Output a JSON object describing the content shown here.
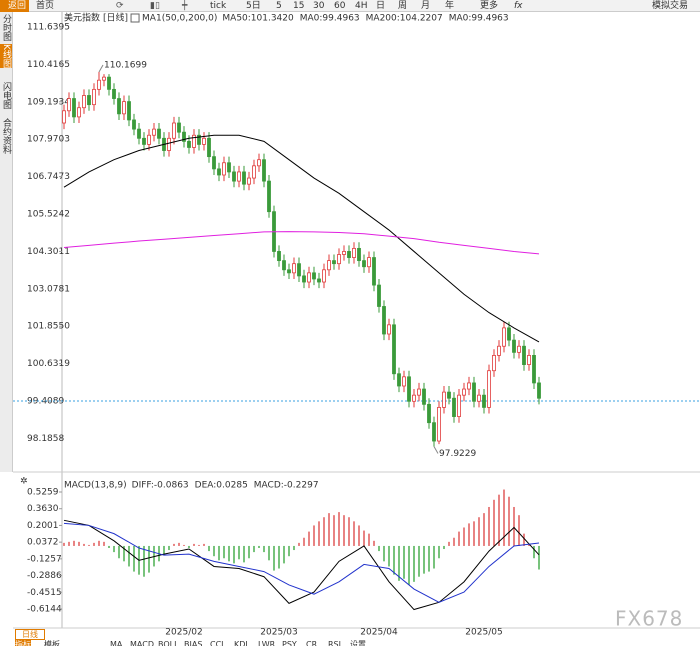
{
  "toolbar": {
    "back": "返回",
    "home": "首页",
    "tick": "tick",
    "periods": [
      "5日",
      "5",
      "15",
      "30",
      "60",
      "4H",
      "日",
      "周",
      "月",
      "年"
    ],
    "more": "更多",
    "fx": "fx",
    "sim": "模拟交易"
  },
  "sidebar": [
    "分时图",
    "K线图",
    "闪电图",
    "合约资料"
  ],
  "chart_data": [
    {
      "type": "candlestick",
      "title": "美元指数",
      "period": "[日线]",
      "params": "MA1(50,0,200,0)",
      "legend": [
        {
          "text": "MA50:101.3420",
          "color": "#000000"
        },
        {
          "text": "MA0:99.4963",
          "color": "#2233cc"
        },
        {
          "text": "MA200:104.2207",
          "color": "#e020e0"
        },
        {
          "text": "MA0:99.4963",
          "color": "#e08a00"
        }
      ],
      "ylim": [
        97.3,
        111.6395
      ],
      "yticks": [
        111.6395,
        110.4165,
        109.1934,
        107.9703,
        106.7473,
        105.5242,
        104.3011,
        103.0781,
        {
          "value": 101.855,
          "label": "101.8550"
        },
        100.6319,
        99.4089,
        98.1858
      ],
      "price_line": 99.4089,
      "xticks": [
        {
          "value": 24,
          "label": "2025/02"
        },
        {
          "value": 43,
          "label": "2025/03"
        },
        {
          "value": 63,
          "label": "2025/04"
        },
        {
          "value": 84,
          "label": "2025/05"
        }
      ],
      "up_color": "#e03a3a",
      "down_color": "#3a9a3a",
      "open": [
        108.5,
        108.9,
        109.3,
        108.7,
        109.0,
        109.4,
        109.1,
        109.6,
        109.9,
        110.0,
        109.6,
        109.3,
        108.8,
        109.2,
        108.6,
        108.3,
        108.0,
        107.8,
        108.1,
        108.3,
        108.0,
        107.6,
        108.0,
        108.5,
        108.2,
        107.9,
        107.7,
        108.1,
        107.8,
        108.0,
        107.4,
        107.0,
        106.8,
        107.2,
        106.9,
        106.6,
        106.9,
        106.5,
        106.7,
        107.1,
        107.3,
        106.6,
        105.6,
        104.3,
        104.0,
        103.7,
        103.6,
        103.9,
        103.5,
        103.3,
        103.6,
        103.4,
        103.3,
        103.7,
        104.0,
        103.9,
        104.2,
        104.3,
        104.1,
        104.4,
        104.0,
        103.8,
        104.1,
        103.2,
        102.5,
        101.6,
        101.9,
        100.3,
        99.9,
        100.2,
        99.4,
        99.6,
        99.8,
        99.3,
        98.7,
        98.1,
        99.2,
        99.7,
        99.5,
        98.9,
        99.6,
        99.8,
        100.0,
        99.4,
        99.6,
        99.2,
        100.4,
        100.9,
        101.2,
        101.8,
        101.4,
        101.0,
        101.2,
        100.6,
        100.9,
        100.0
      ],
      "high": [
        109.1,
        109.5,
        109.5,
        109.2,
        109.6,
        109.6,
        109.8,
        110.1699,
        110.1,
        110.1,
        109.8,
        109.5,
        109.4,
        109.4,
        108.8,
        108.5,
        108.2,
        108.3,
        108.5,
        108.5,
        108.2,
        108.2,
        108.7,
        108.7,
        108.4,
        108.1,
        108.3,
        108.3,
        108.2,
        108.2,
        107.6,
        107.2,
        107.4,
        107.4,
        107.1,
        107.1,
        107.1,
        106.9,
        107.3,
        107.5,
        107.5,
        106.8,
        105.8,
        104.5,
        104.2,
        103.9,
        104.1,
        104.1,
        103.7,
        103.8,
        103.8,
        103.6,
        103.9,
        104.2,
        104.2,
        104.4,
        104.5,
        104.5,
        104.6,
        104.6,
        104.2,
        104.3,
        104.3,
        103.4,
        102.7,
        102.1,
        102.1,
        100.5,
        100.4,
        100.4,
        99.8,
        100.0,
        100.0,
        99.5,
        98.9,
        99.4,
        99.9,
        99.9,
        99.7,
        99.8,
        100.0,
        100.2,
        100.2,
        99.8,
        99.8,
        100.6,
        101.1,
        101.4,
        102.0,
        102.0,
        101.6,
        101.4,
        101.4,
        101.1,
        101.1,
        100.2
      ],
      "low": [
        108.3,
        108.7,
        108.5,
        108.5,
        108.8,
        108.9,
        108.9,
        109.4,
        109.7,
        109.4,
        109.1,
        108.6,
        108.6,
        108.4,
        108.1,
        107.8,
        107.6,
        107.6,
        107.9,
        107.8,
        107.4,
        107.4,
        107.8,
        108.0,
        107.7,
        107.5,
        107.5,
        107.6,
        107.6,
        107.2,
        106.8,
        106.6,
        106.6,
        106.7,
        106.4,
        106.4,
        106.3,
        106.3,
        106.5,
        106.9,
        106.4,
        105.4,
        104.1,
        103.8,
        103.5,
        103.4,
        103.4,
        103.3,
        103.1,
        103.1,
        103.2,
        103.1,
        103.1,
        103.5,
        103.7,
        103.7,
        104.0,
        103.9,
        103.9,
        103.8,
        103.6,
        103.6,
        103.0,
        102.3,
        101.4,
        101.4,
        100.1,
        99.7,
        99.7,
        99.2,
        99.2,
        99.4,
        99.1,
        98.5,
        97.9229,
        98.0,
        99.0,
        99.3,
        98.7,
        98.7,
        99.4,
        99.6,
        99.2,
        99.2,
        99.0,
        99.0,
        100.2,
        100.7,
        101.0,
        101.2,
        100.8,
        100.8,
        100.4,
        100.4,
        99.8,
        99.3
      ],
      "close": [
        108.9,
        109.3,
        108.7,
        109.0,
        109.4,
        109.1,
        109.6,
        109.9,
        110.0,
        109.6,
        109.3,
        108.8,
        109.2,
        108.6,
        108.3,
        108.0,
        107.8,
        108.1,
        108.3,
        108.0,
        107.6,
        108.0,
        108.5,
        108.2,
        107.9,
        107.7,
        108.1,
        107.8,
        108.0,
        107.4,
        107.0,
        106.8,
        107.2,
        106.9,
        106.6,
        106.9,
        106.5,
        106.7,
        107.1,
        107.3,
        106.6,
        105.6,
        104.3,
        104.0,
        103.7,
        103.6,
        103.9,
        103.5,
        103.3,
        103.6,
        103.4,
        103.3,
        103.7,
        104.0,
        103.9,
        104.2,
        104.3,
        104.1,
        104.4,
        104.0,
        103.8,
        104.1,
        103.2,
        102.5,
        101.6,
        101.9,
        100.3,
        99.9,
        100.2,
        99.4,
        99.6,
        99.8,
        99.3,
        98.7,
        98.1,
        99.2,
        99.7,
        99.5,
        98.9,
        99.6,
        99.8,
        100.0,
        99.4,
        99.6,
        99.2,
        100.4,
        100.9,
        101.2,
        101.8,
        101.4,
        101.0,
        101.2,
        100.6,
        100.9,
        100.0,
        99.5
      ],
      "overlays": [
        {
          "color": "#000000",
          "x": [
            0,
            5,
            10,
            15,
            20,
            25,
            30,
            35,
            40,
            45,
            50,
            55,
            60,
            65,
            70,
            75,
            80,
            85,
            90,
            95
          ],
          "values": [
            106.4,
            106.9,
            107.3,
            107.6,
            107.8,
            108.0,
            108.1,
            108.1,
            107.9,
            107.3,
            106.7,
            106.2,
            105.6,
            105.0,
            104.3,
            103.6,
            102.9,
            102.3,
            101.8,
            101.342
          ]
        },
        {
          "color": "#e020e0",
          "x": [
            0,
            5,
            10,
            15,
            20,
            25,
            30,
            35,
            40,
            45,
            50,
            55,
            60,
            65,
            70,
            75,
            80,
            85,
            90,
            95
          ],
          "values": [
            104.43,
            104.5,
            104.57,
            104.64,
            104.7,
            104.76,
            104.82,
            104.88,
            104.94,
            104.95,
            104.94,
            104.92,
            104.88,
            104.8,
            104.72,
            104.6,
            104.5,
            104.4,
            104.3,
            104.2207
          ]
        }
      ],
      "annotations": [
        {
          "index": 7,
          "field": "high"
        },
        {
          "index": 74,
          "field": "low"
        }
      ]
    },
    {
      "type": "macd",
      "title": "MACD(13,8,9)",
      "legend": [
        {
          "text": "DIFF:-0.0863",
          "color": "#000000"
        },
        {
          "text": "DEA:0.0285",
          "color": "#2233cc"
        },
        {
          "text": "MACD:-0.2297",
          "color": "#e020e0"
        }
      ],
      "ylim": [
        -0.8,
        0.565
      ],
      "yticks": [
        0.5259,
        {
          "value": 0.363,
          "label": "0.3630"
        },
        0.2001,
        0.0372,
        -0.1257,
        -0.2886,
        -0.4515,
        -0.6144
      ],
      "up_color": "#e05a5a",
      "down_color": "#4caf50",
      "histogram": [
        0.03,
        0.04,
        0.05,
        0.04,
        0.02,
        0.01,
        0.03,
        0.05,
        0.04,
        -0.02,
        -0.06,
        -0.12,
        -0.15,
        -0.2,
        -0.25,
        -0.28,
        -0.3,
        -0.26,
        -0.2,
        -0.15,
        -0.08,
        -0.04,
        0.02,
        0.03,
        0.01,
        -0.02,
        0.02,
        0.01,
        0.02,
        -0.05,
        -0.1,
        -0.14,
        -0.12,
        -0.15,
        -0.17,
        -0.13,
        -0.16,
        -0.12,
        -0.06,
        -0.02,
        -0.06,
        -0.14,
        -0.24,
        -0.22,
        -0.17,
        -0.1,
        -0.04,
        0.03,
        0.08,
        0.14,
        0.2,
        0.24,
        0.28,
        0.32,
        0.3,
        0.33,
        0.3,
        0.28,
        0.24,
        0.2,
        0.15,
        0.12,
        0.05,
        -0.05,
        -0.15,
        -0.2,
        -0.28,
        -0.34,
        -0.32,
        -0.38,
        -0.35,
        -0.3,
        -0.27,
        -0.25,
        -0.22,
        -0.12,
        -0.03,
        0.04,
        0.08,
        0.14,
        0.18,
        0.22,
        0.24,
        0.28,
        0.32,
        0.38,
        0.45,
        0.5,
        0.55,
        0.48,
        0.38,
        0.3,
        0.12,
        0.02,
        -0.12,
        -0.2297
      ],
      "series": [
        {
          "color": "#000000",
          "x": [
            0,
            5,
            10,
            15,
            20,
            25,
            30,
            35,
            40,
            45,
            50,
            55,
            60,
            65,
            70,
            75,
            80,
            85,
            90,
            95
          ],
          "values": [
            0.25,
            0.2,
            0.05,
            -0.14,
            -0.08,
            -0.03,
            -0.2,
            -0.22,
            -0.3,
            -0.56,
            -0.45,
            -0.15,
            0.0,
            -0.35,
            -0.62,
            -0.55,
            -0.35,
            -0.05,
            0.18,
            -0.0863
          ]
        },
        {
          "color": "#2233cc",
          "x": [
            0,
            5,
            10,
            15,
            20,
            25,
            30,
            35,
            40,
            45,
            50,
            55,
            60,
            65,
            70,
            75,
            80,
            85,
            90,
            95
          ],
          "values": [
            0.22,
            0.2,
            0.12,
            -0.02,
            -0.09,
            -0.08,
            -0.15,
            -0.2,
            -0.25,
            -0.38,
            -0.47,
            -0.35,
            -0.18,
            -0.22,
            -0.42,
            -0.55,
            -0.45,
            -0.2,
            0.0,
            0.0285
          ]
        }
      ]
    }
  ],
  "bottom": {
    "tab": "日线",
    "items": [
      "指标",
      "模板",
      "MA",
      "MACD",
      "BOLL",
      "BIAS",
      "CCI",
      "KDJ",
      "LWR",
      "PSY",
      "CR",
      "RSI",
      "设置"
    ]
  },
  "watermark": "FX678"
}
